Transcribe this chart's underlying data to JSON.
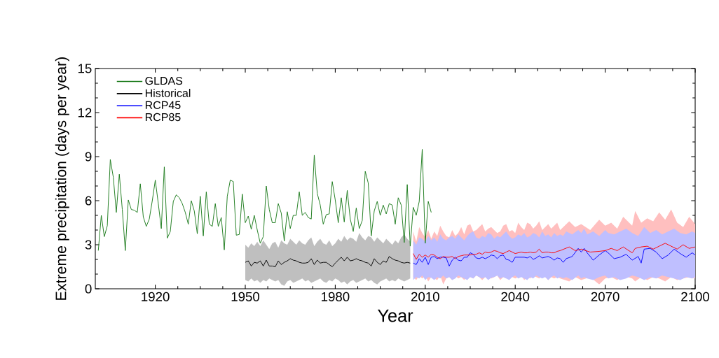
{
  "chart_data": {
    "type": "line",
    "xlabel": "Year",
    "ylabel": "Extreme precipitation (days per year)",
    "xlim": [
      1900,
      2100
    ],
    "xticks": [
      1920,
      1950,
      1980,
      2010,
      2040,
      2070,
      2100
    ],
    "ylim": [
      0,
      15
    ],
    "yticks": [
      0,
      3,
      6,
      9,
      12,
      15
    ],
    "legend": "top left",
    "grid": false,
    "series": [
      {
        "name": "GLDAS",
        "color": "#1a7a1a",
        "x": [
          1901,
          1902,
          1903,
          1904,
          1905,
          1906,
          1907,
          1908,
          1909,
          1910,
          1911,
          1912,
          1913,
          1914,
          1915,
          1916,
          1917,
          1918,
          1919,
          1920,
          1921,
          1922,
          1923,
          1924,
          1925,
          1926,
          1927,
          1928,
          1929,
          1930,
          1931,
          1932,
          1933,
          1934,
          1935,
          1936,
          1937,
          1938,
          1939,
          1940,
          1941,
          1942,
          1943,
          1944,
          1945,
          1946,
          1947,
          1948,
          1949,
          1950,
          1951,
          1952,
          1953,
          1954,
          1955,
          1956,
          1957,
          1958,
          1959,
          1960,
          1961,
          1962,
          1963,
          1964,
          1965,
          1966,
          1967,
          1968,
          1969,
          1970,
          1971,
          1972,
          1973,
          1974,
          1975,
          1976,
          1977,
          1978,
          1979,
          1980,
          1981,
          1982,
          1983,
          1984,
          1985,
          1986,
          1987,
          1988,
          1989,
          1990,
          1991,
          1992,
          1993,
          1994,
          1995,
          1996,
          1997,
          1998,
          1999,
          2000,
          2001,
          2002,
          2003,
          2004,
          2005,
          2006,
          2007,
          2008,
          2009,
          2010,
          2011,
          2012
        ],
        "values": [
          2.6,
          5.0,
          3.55,
          4.3,
          8.8,
          7.6,
          5.2,
          7.8,
          5.4,
          2.6,
          6.05,
          5.4,
          5.35,
          5.2,
          7.15,
          4.9,
          4.25,
          4.75,
          6.0,
          7.4,
          5.8,
          4.1,
          8.3,
          3.45,
          3.9,
          5.95,
          6.4,
          6.2,
          5.8,
          5.2,
          4.4,
          6.0,
          5.3,
          3.75,
          6.3,
          3.6,
          6.6,
          4.4,
          4.25,
          5.8,
          4.25,
          4.85,
          2.65,
          6.3,
          7.4,
          7.3,
          3.65,
          3.7,
          6.45,
          4.5,
          4.95,
          4.05,
          5.0,
          4.0,
          3.1,
          3.55,
          7.0,
          5.4,
          4.5,
          4.5,
          5.8,
          5.15,
          3.25,
          5.25,
          4.1,
          5.0,
          5.0,
          6.6,
          5.0,
          5.2,
          4.85,
          4.75,
          9.1,
          6.5,
          5.7,
          4.4,
          5.05,
          5.1,
          7.3,
          6.05,
          4.5,
          6.2,
          4.55,
          6.7,
          4.75,
          3.9,
          5.5,
          4.1,
          4.65,
          8.0,
          7.2,
          3.6,
          5.3,
          5.95,
          5.0,
          5.7,
          5.1,
          5.8,
          5.7,
          4.4,
          6.2,
          5.7,
          3.15,
          7.1,
          2.9,
          5.55,
          5.0,
          5.95,
          9.5,
          3.1,
          5.95,
          5.2
        ]
      },
      {
        "name": "Historical",
        "color": "#000000",
        "x": [
          1950,
          1951,
          1952,
          1953,
          1954,
          1955,
          1956,
          1957,
          1958,
          1959,
          1960,
          1961,
          1962,
          1963,
          1964,
          1965,
          1966,
          1967,
          1968,
          1969,
          1970,
          1971,
          1972,
          1973,
          1974,
          1975,
          1976,
          1977,
          1978,
          1979,
          1980,
          1981,
          1982,
          1983,
          1984,
          1985,
          1986,
          1987,
          1988,
          1989,
          1990,
          1991,
          1992,
          1993,
          1994,
          1995,
          1996,
          1997,
          1998,
          1999,
          2000,
          2001,
          2002,
          2003,
          2004,
          2005
        ],
        "values": [
          1.8,
          1.9,
          1.55,
          1.8,
          1.75,
          1.9,
          1.55,
          1.95,
          1.55,
          1.55,
          1.5,
          1.9,
          1.65,
          1.8,
          1.9,
          2.05,
          1.95,
          1.9,
          1.8,
          1.75,
          1.75,
          1.8,
          2.05,
          1.65,
          1.95,
          1.75,
          1.8,
          1.8,
          1.65,
          1.5,
          1.75,
          1.95,
          2.15,
          1.9,
          2.15,
          1.9,
          1.95,
          2.05,
          1.95,
          1.9,
          1.8,
          1.75,
          1.55,
          2.05,
          1.8,
          1.65,
          1.9,
          1.8,
          2.2,
          2.05,
          1.95,
          1.9,
          1.8,
          1.75,
          1.8,
          1.75
        ],
        "upper": [
          3.0,
          2.8,
          3.1,
          2.9,
          3.2,
          2.9,
          3.3,
          3.0,
          2.7,
          3.1,
          3.2,
          2.8,
          3.3,
          3.1,
          3.0,
          3.4,
          3.2,
          3.0,
          3.3,
          3.1,
          3.0,
          3.3,
          3.5,
          2.9,
          3.2,
          3.4,
          3.1,
          3.0,
          3.3,
          2.9,
          3.1,
          3.4,
          3.2,
          3.6,
          3.3,
          3.5,
          3.4,
          3.2,
          3.8,
          3.5,
          3.3,
          3.6,
          3.5,
          3.2,
          3.5,
          3.3,
          3.1,
          3.4,
          3.2,
          3.0,
          3.3,
          3.1,
          3.5,
          3.7,
          3.4,
          3.2
        ],
        "lower": [
          0.6,
          0.5,
          0.7,
          0.5,
          0.6,
          0.4,
          0.6,
          0.5,
          0.7,
          0.6,
          0.5,
          0.6,
          0.3,
          0.2,
          0.5,
          0.6,
          0.4,
          0.5,
          0.6,
          0.7,
          0.5,
          0.6,
          0.4,
          0.5,
          0.6,
          0.7,
          0.5,
          0.4,
          0.6,
          0.5,
          0.7,
          0.6,
          0.4,
          0.5,
          0.3,
          0.5,
          0.6,
          0.4,
          0.5,
          0.6,
          0.7,
          0.5,
          0.6,
          0.4,
          0.3,
          0.5,
          0.6,
          0.7,
          0.5,
          0.6,
          0.5,
          0.7,
          0.6,
          0.5,
          0.6,
          0.7
        ]
      },
      {
        "name": "RCP45",
        "color": "#0000ff",
        "x": [
          2006,
          2007,
          2008,
          2009,
          2010,
          2011,
          2012,
          2013,
          2014,
          2015,
          2016,
          2017,
          2018,
          2019,
          2020,
          2021,
          2022,
          2023,
          2024,
          2025,
          2026,
          2027,
          2028,
          2029,
          2030,
          2031,
          2032,
          2033,
          2034,
          2035,
          2036,
          2037,
          2038,
          2039,
          2040,
          2041,
          2042,
          2043,
          2044,
          2045,
          2046,
          2047,
          2048,
          2049,
          2050,
          2051,
          2052,
          2053,
          2054,
          2055,
          2056,
          2057,
          2059,
          2061,
          2062,
          2063,
          2064,
          2066,
          2068,
          2070,
          2071,
          2073,
          2075,
          2077,
          2079,
          2081,
          2082,
          2083,
          2085,
          2087,
          2089,
          2091,
          2093,
          2095,
          2097,
          2099,
          2100
        ],
        "values": [
          1.75,
          1.65,
          2.05,
          1.8,
          2.15,
          1.65,
          2.15,
          2.2,
          2.05,
          2.15,
          2.15,
          2.1,
          1.55,
          1.95,
          2.15,
          1.95,
          1.9,
          2.15,
          2.15,
          2.45,
          2.35,
          2.1,
          2.05,
          2.15,
          2.05,
          2.15,
          2.3,
          2.25,
          2.05,
          2.25,
          2.3,
          2.0,
          1.95,
          1.8,
          2.15,
          2.15,
          2.15,
          2.15,
          2.1,
          2.2,
          2.0,
          2.1,
          2.25,
          2.1,
          2.15,
          2.2,
          2.1,
          1.95,
          2.1,
          2.05,
          1.8,
          2.05,
          2.2,
          2.75,
          2.5,
          2.75,
          2.45,
          1.95,
          2.3,
          2.6,
          2.45,
          2.05,
          2.15,
          2.35,
          1.95,
          2.2,
          1.75,
          2.7,
          2.75,
          2.5,
          2.05,
          2.3,
          2.7,
          2.4,
          2.15,
          2.45,
          2.3
        ],
        "upper": [
          3.3,
          3.0,
          3.5,
          3.4,
          3.2,
          3.6,
          3.3,
          3.5,
          3.2,
          3.7,
          3.4,
          3.3,
          3.5,
          3.6,
          3.4,
          3.7,
          3.5,
          3.3,
          3.6,
          3.8,
          3.9,
          3.5,
          3.4,
          3.6,
          3.5,
          3.8,
          3.7,
          3.4,
          3.6,
          3.5,
          3.7,
          3.9,
          3.6,
          3.4,
          3.5,
          3.7,
          3.6,
          3.8,
          3.5,
          3.6,
          3.8,
          3.7,
          3.5,
          3.9,
          3.6,
          3.7,
          3.5,
          3.8,
          3.6,
          3.7,
          3.6,
          3.9,
          3.7,
          4.0,
          3.8,
          4.1,
          3.7,
          3.9,
          3.6,
          4.0,
          3.8,
          3.7,
          3.9,
          4.1,
          3.8,
          3.6,
          3.9,
          4.2,
          3.8,
          4.0,
          3.7,
          3.9,
          4.1,
          3.8,
          3.7,
          3.9,
          3.8
        ],
        "lower": [
          0.6,
          0.8,
          0.7,
          0.9,
          0.6,
          0.8,
          0.75,
          0.6,
          0.8,
          0.7,
          0.9,
          0.7,
          0.8,
          0.6,
          0.7,
          0.9,
          0.8,
          0.7,
          0.6,
          0.8,
          0.7,
          0.9,
          0.8,
          0.7,
          0.8,
          0.6,
          0.75,
          0.8,
          0.9,
          0.7,
          0.8,
          0.7,
          0.6,
          0.8,
          0.9,
          0.7,
          0.8,
          0.7,
          0.6,
          0.8,
          0.7,
          0.9,
          0.8,
          0.7,
          0.8,
          0.6,
          0.8,
          0.9,
          0.7,
          0.8,
          0.7,
          0.8,
          0.6,
          0.9,
          0.7,
          0.8,
          0.7,
          0.6,
          0.8,
          0.9,
          0.7,
          0.8,
          0.6,
          0.7,
          0.9,
          0.8,
          0.7,
          0.6,
          0.8,
          0.7,
          0.9,
          0.8,
          0.7,
          0.6,
          0.8,
          0.7,
          0.8
        ]
      },
      {
        "name": "RCP85",
        "color": "#ff0000",
        "x": [
          2006,
          2007,
          2008,
          2009,
          2010,
          2011,
          2012,
          2013,
          2014,
          2015,
          2016,
          2017,
          2018,
          2019,
          2020,
          2021,
          2022,
          2023,
          2024,
          2025,
          2026,
          2027,
          2028,
          2029,
          2030,
          2031,
          2032,
          2033,
          2034,
          2035,
          2036,
          2037,
          2038,
          2039,
          2040,
          2041,
          2042,
          2043,
          2044,
          2045,
          2046,
          2047,
          2048,
          2049,
          2050,
          2051,
          2052,
          2053,
          2054,
          2055,
          2058,
          2060,
          2062,
          2065,
          2068,
          2070,
          2072,
          2074,
          2076,
          2079,
          2080,
          2082,
          2084,
          2086,
          2088,
          2090,
          2092,
          2094,
          2096,
          2098,
          2100
        ],
        "values": [
          2.4,
          2.0,
          2.35,
          2.15,
          2.3,
          2.15,
          2.35,
          2.3,
          2.15,
          2.05,
          2.2,
          2.15,
          2.15,
          2.2,
          2.05,
          2.2,
          2.25,
          2.3,
          2.3,
          2.3,
          2.35,
          2.35,
          2.45,
          2.35,
          2.5,
          2.45,
          2.5,
          2.6,
          2.55,
          2.45,
          2.4,
          2.5,
          2.6,
          2.5,
          2.4,
          2.45,
          2.5,
          2.45,
          2.45,
          2.5,
          2.45,
          2.5,
          2.7,
          2.45,
          2.5,
          2.5,
          2.45,
          2.45,
          2.55,
          2.6,
          2.85,
          2.6,
          2.7,
          2.5,
          2.55,
          2.6,
          2.75,
          2.6,
          2.85,
          2.45,
          2.75,
          2.85,
          2.9,
          2.7,
          2.9,
          3.1,
          2.9,
          2.7,
          3.0,
          2.75,
          2.85
        ],
        "upper": [
          3.9,
          3.2,
          4.2,
          3.8,
          3.5,
          4.0,
          3.4,
          3.9,
          3.6,
          4.3,
          3.9,
          3.6,
          3.5,
          4.0,
          3.6,
          3.8,
          4.2,
          3.7,
          4.3,
          4.4,
          3.9,
          4.0,
          4.2,
          4.4,
          3.9,
          4.1,
          4.2,
          4.0,
          3.8,
          3.9,
          4.3,
          4.4,
          3.9,
          4.0,
          3.8,
          4.5,
          4.2,
          4.0,
          4.5,
          4.4,
          4.1,
          4.3,
          4.6,
          4.0,
          4.2,
          4.4,
          4.1,
          4.3,
          4.5,
          4.0,
          4.6,
          4.2,
          4.4,
          4.0,
          4.7,
          4.3,
          4.5,
          4.1,
          4.9,
          4.3,
          5.3,
          4.5,
          4.8,
          4.6,
          5.2,
          4.7,
          5.4,
          4.5,
          4.2,
          4.9,
          4.4
        ],
        "lower": [
          0.8,
          0.6,
          0.9,
          0.7,
          0.9,
          0.5,
          0.8,
          0.7,
          0.6,
          0.9,
          0.3,
          0.7,
          0.8,
          0.6,
          0.9,
          0.7,
          0.8,
          0.6,
          0.9,
          0.8,
          0.7,
          0.9,
          0.8,
          0.6,
          0.8,
          0.9,
          0.7,
          0.8,
          0.9,
          0.6,
          0.8,
          0.7,
          0.9,
          0.8,
          0.7,
          0.8,
          0.9,
          0.6,
          0.8,
          0.7,
          0.9,
          0.8,
          0.7,
          0.9,
          0.8,
          0.6,
          0.8,
          0.7,
          0.8,
          0.7,
          0.5,
          0.8,
          0.6,
          0.8,
          0.3,
          0.7,
          0.8,
          0.6,
          0.9,
          0.7,
          0.5,
          0.8,
          0.6,
          0.8,
          0.7,
          0.5,
          0.8,
          0.6,
          0.7,
          0.8,
          0.7
        ]
      }
    ]
  }
}
